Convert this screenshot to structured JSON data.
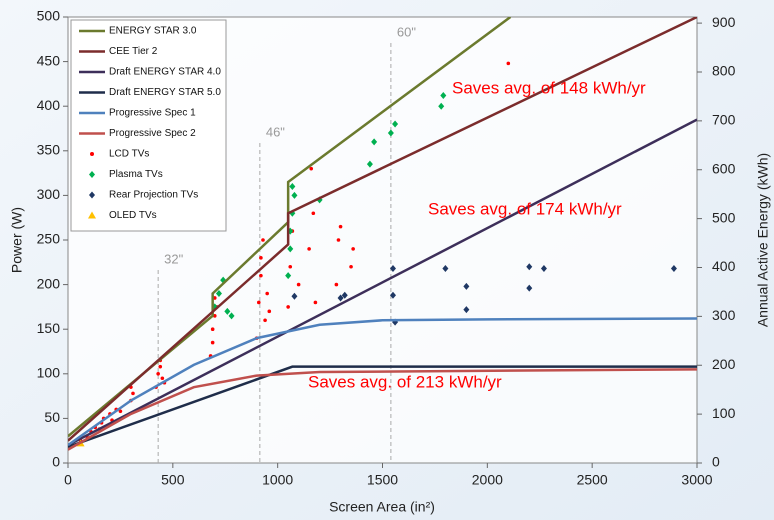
{
  "chart_data": {
    "type": "scatter",
    "x_label": "Screen Area (in²)",
    "y_label": "Power (W)",
    "y2_label": "Annual Active Energy (kWh)",
    "xlim": [
      0,
      3000
    ],
    "xticks": [
      0,
      500,
      1000,
      1500,
      2000,
      2500,
      3000
    ],
    "ylim": [
      0,
      500
    ],
    "yticks": [
      0,
      50,
      100,
      150,
      200,
      250,
      300,
      350,
      400,
      450,
      500
    ],
    "y2lim": [
      0,
      912.5
    ],
    "y2ticks": [
      0,
      100,
      200,
      300,
      400,
      500,
      600,
      700,
      800,
      900
    ],
    "legend": "upper left",
    "series": [
      {
        "name": "ENERGY STAR 3.0",
        "type": "line",
        "color": "#6b7a2e",
        "x": [
          0,
          690,
          690,
          1050,
          1050,
          2110
        ],
        "values": [
          30,
          165,
          190,
          270,
          315,
          500
        ]
      },
      {
        "name": "CEE Tier 2",
        "type": "line",
        "color": "#7b2c2c",
        "x": [
          0,
          1050,
          1050,
          3000
        ],
        "values": [
          25,
          245,
          280,
          500
        ]
      },
      {
        "name": "Draft ENERGY STAR 4.0",
        "type": "line",
        "color": "#3d2f5a",
        "x": [
          0,
          3000
        ],
        "values": [
          20,
          385
        ]
      },
      {
        "name": "Draft ENERGY STAR 5.0",
        "type": "line",
        "color": "#1f2d4a",
        "x": [
          0,
          1070,
          3000
        ],
        "values": [
          18,
          108,
          108
        ]
      },
      {
        "name": "Progressive Spec 1",
        "type": "line",
        "color": "#4f81bd",
        "x": [
          0,
          300,
          600,
          900,
          1200,
          1500,
          2000,
          3000
        ],
        "values": [
          20,
          70,
          110,
          140,
          155,
          160,
          161,
          162
        ]
      },
      {
        "name": "Progressive Spec 2",
        "type": "line",
        "color": "#c0504d",
        "x": [
          0,
          300,
          600,
          900,
          1200,
          3000
        ],
        "values": [
          15,
          55,
          85,
          98,
          102,
          105
        ]
      },
      {
        "name": "LCD TVs",
        "type": "scatter",
        "marker": "circle",
        "color": "#ff0000",
        "x": [
          60,
          90,
          110,
          130,
          150,
          160,
          170,
          190,
          200,
          210,
          230,
          250,
          300,
          300,
          310,
          420,
          430,
          440,
          450,
          440,
          460,
          680,
          690,
          700,
          690,
          700,
          710,
          900,
          910,
          920,
          930,
          940,
          920,
          950,
          960,
          1050,
          1060,
          1070,
          1080,
          1100,
          1150,
          1160,
          1170,
          1180,
          1280,
          1290,
          1300,
          1350,
          1360,
          2100
        ],
        "values": [
          25,
          30,
          35,
          40,
          38,
          45,
          50,
          42,
          55,
          48,
          60,
          58,
          70,
          85,
          78,
          85,
          100,
          115,
          95,
          108,
          90,
          120,
          150,
          185,
          135,
          165,
          175,
          140,
          180,
          210,
          250,
          160,
          230,
          190,
          170,
          175,
          220,
          260,
          300,
          200,
          240,
          330,
          280,
          180,
          200,
          250,
          265,
          220,
          240,
          448
        ]
      },
      {
        "name": "Plasma TVs",
        "type": "scatter",
        "marker": "diamond",
        "color": "#00b050",
        "x": [
          700,
          720,
          740,
          760,
          780,
          1050,
          1060,
          1070,
          1080,
          1070,
          1060,
          1200,
          1440,
          1460,
          1540,
          1560,
          1780,
          1790
        ],
        "values": [
          175,
          190,
          205,
          170,
          165,
          210,
          240,
          280,
          300,
          310,
          260,
          295,
          335,
          360,
          370,
          380,
          400,
          412
        ]
      },
      {
        "name": "Rear Projection TVs",
        "type": "scatter",
        "marker": "diamond",
        "color": "#1f3864",
        "x": [
          1080,
          1300,
          1320,
          1550,
          1550,
          1560,
          1800,
          1900,
          1900,
          2200,
          2200,
          2270,
          2890
        ],
        "values": [
          187,
          185,
          188,
          218,
          188,
          158,
          218,
          198,
          172,
          220,
          196,
          218,
          218
        ]
      },
      {
        "name": "OLED TVs",
        "type": "scatter",
        "marker": "triangle",
        "color": "#ffc000",
        "x": [
          60
        ],
        "values": [
          22
        ]
      }
    ],
    "reference_lines": [
      {
        "x": 430,
        "label": "32\""
      },
      {
        "x": 915,
        "label": "46\""
      },
      {
        "x": 1540,
        "label": "60\""
      }
    ],
    "annotations": [
      "Saves avg. of 148 kWh/yr",
      "Saves avg. of 174 kWh/yr",
      "Saves avg. of 213 kWh/yr"
    ]
  }
}
